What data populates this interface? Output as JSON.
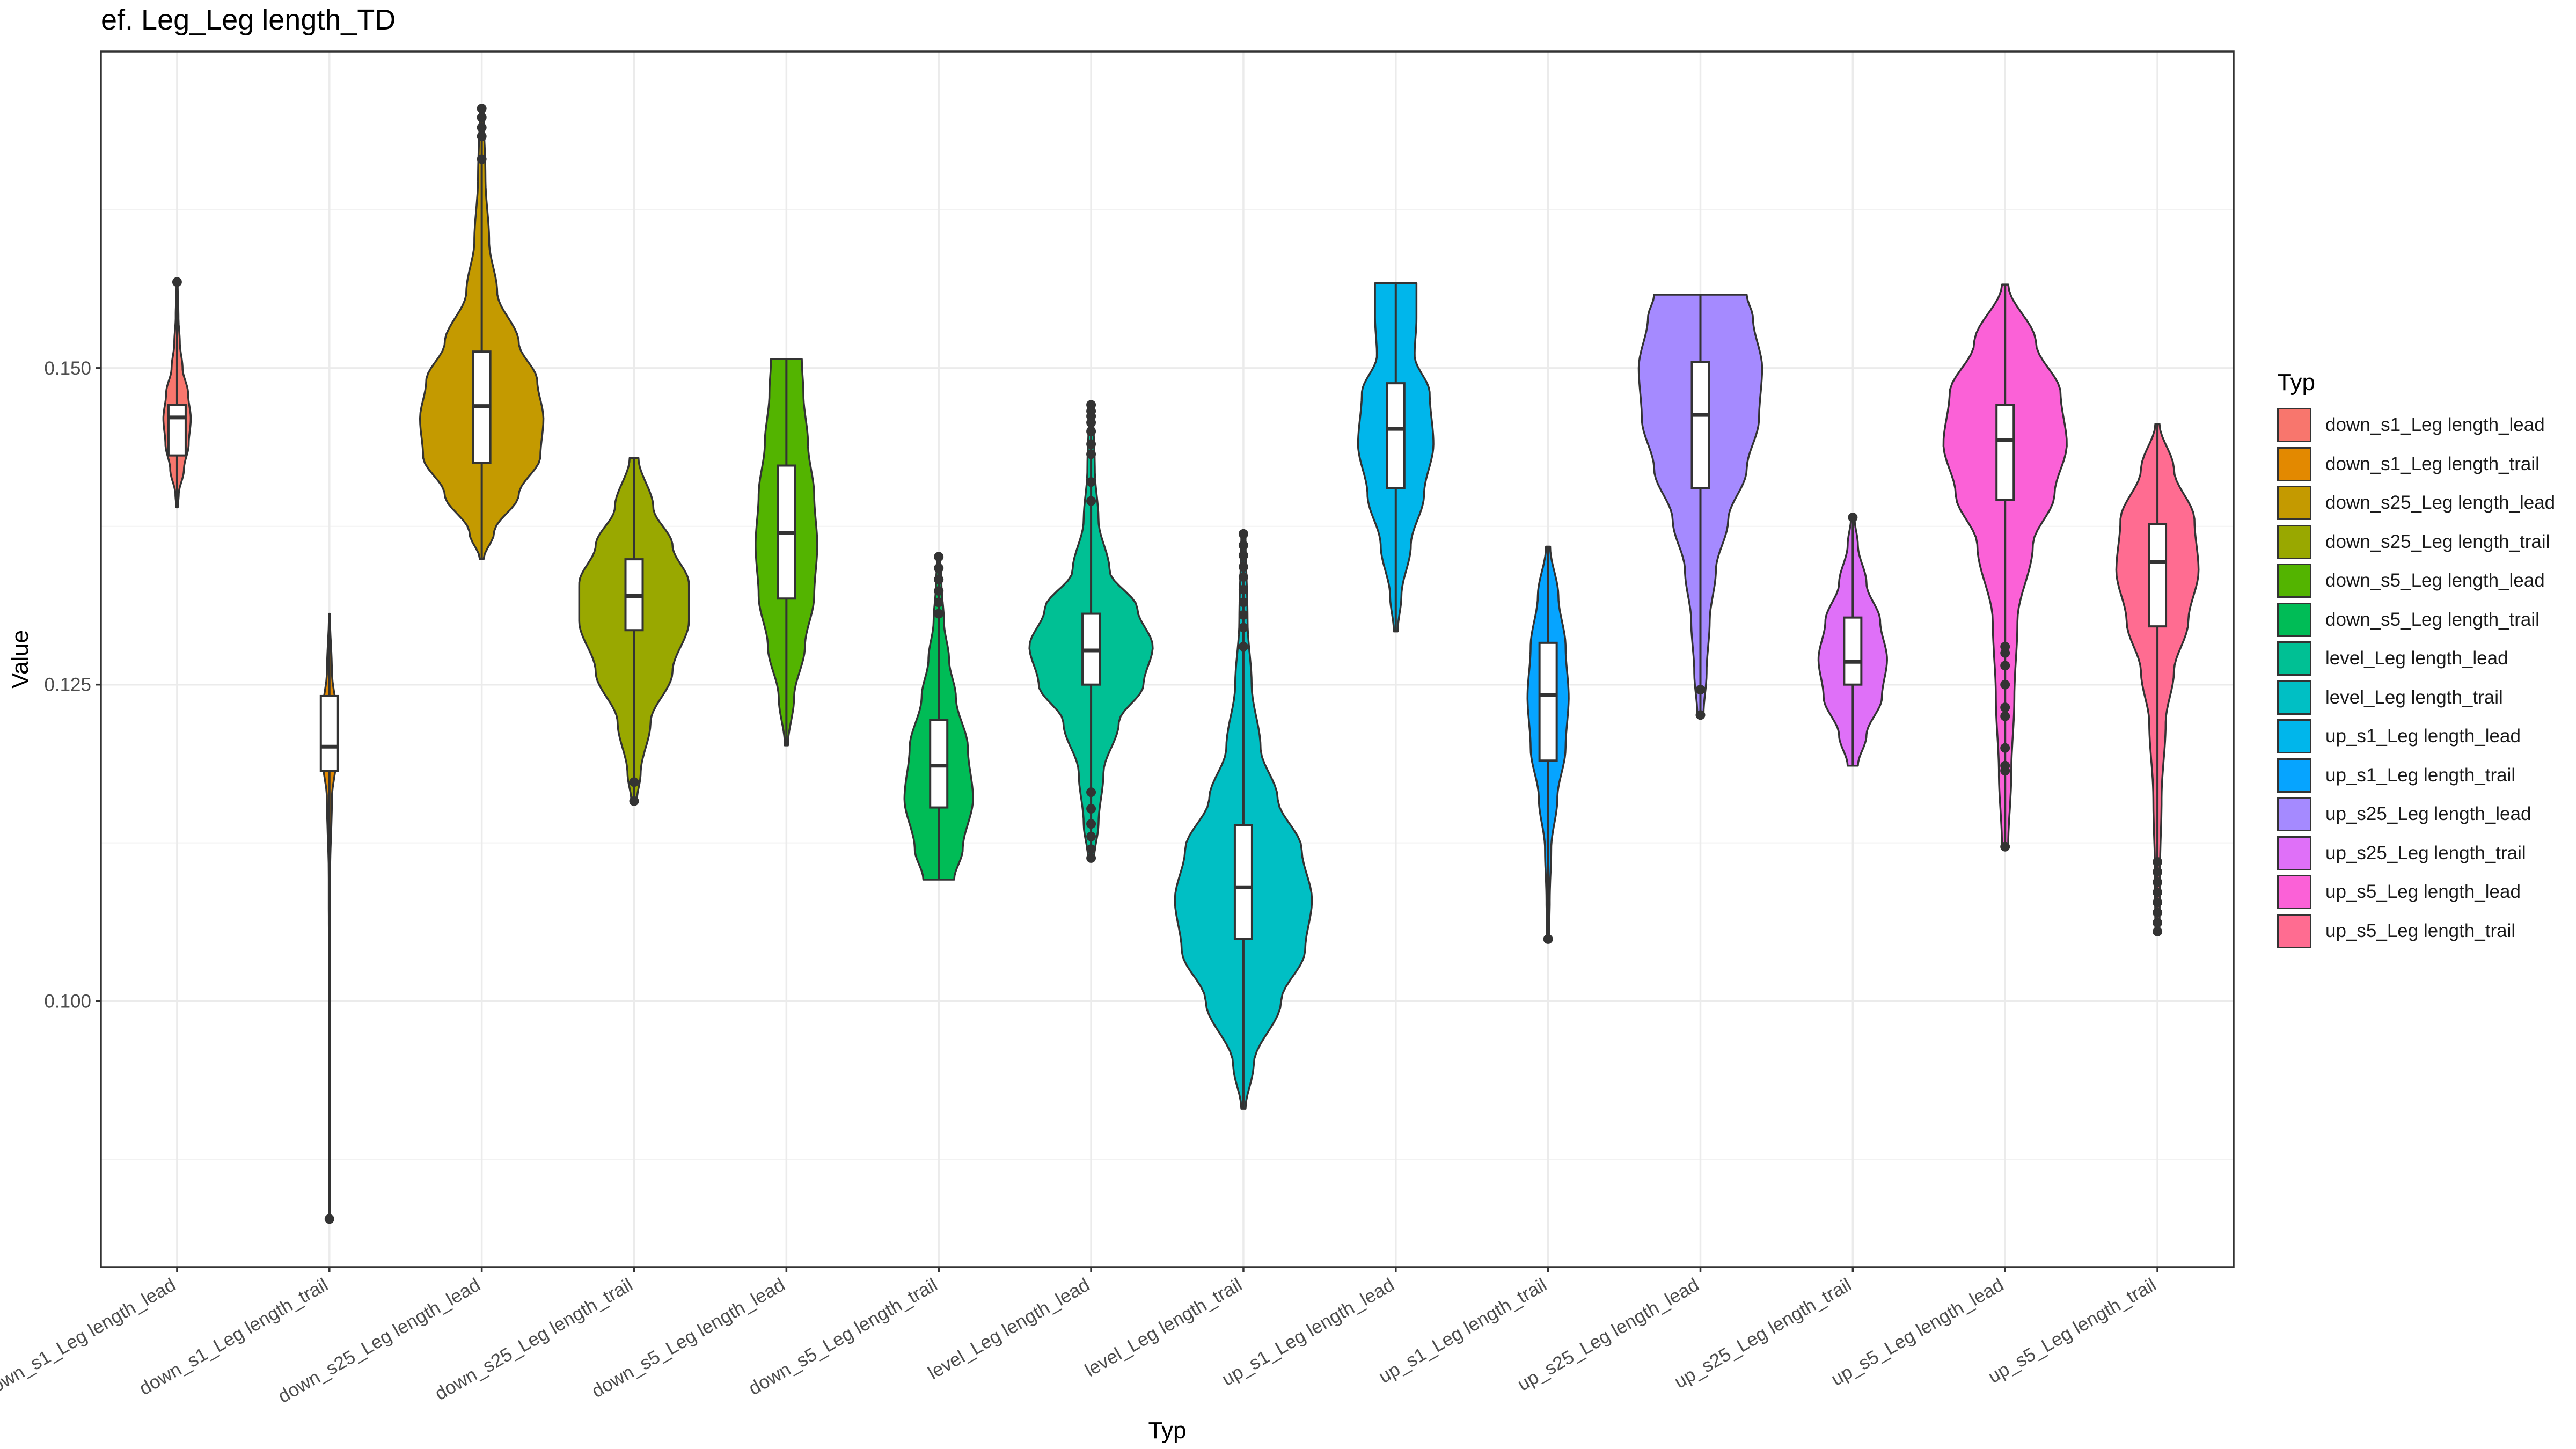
{
  "title": "ef. Leg_Leg length_TD",
  "chart_data": {
    "type": "violin",
    "title": "ef. Leg_Leg length_TD",
    "xlabel": "Typ",
    "ylabel": "Value",
    "ylim": [
      0.079,
      0.175
    ],
    "yticks": [
      0.1,
      0.125,
      0.15
    ],
    "ytick_labels": [
      "0.100",
      "0.125",
      "0.150"
    ],
    "grid": true,
    "legend_title": "Typ",
    "legend_position": "right",
    "categories": [
      "down_s1_Leg length_lead",
      "down_s1_Leg length_trail",
      "down_s25_Leg length_lead",
      "down_s25_Leg length_trail",
      "down_s5_Leg length_lead",
      "down_s5_Leg length_trail",
      "level_Leg length_lead",
      "level_Leg length_trail",
      "up_s1_Leg length_lead",
      "up_s1_Leg length_trail",
      "up_s25_Leg length_lead",
      "up_s25_Leg length_trail",
      "up_s5_Leg length_lead",
      "up_s5_Leg length_trail"
    ],
    "series": [
      {
        "name": "down_s1_Leg length_lead",
        "color": "#F8766D",
        "min": 0.139,
        "max": 0.1568,
        "q1": 0.1431,
        "median": 0.1461,
        "q3": 0.1471,
        "max_width": 0.2,
        "profile": [
          [
            0.139,
            0.05
          ],
          [
            0.14,
            0.12
          ],
          [
            0.142,
            0.5
          ],
          [
            0.144,
            0.85
          ],
          [
            0.146,
            1.0
          ],
          [
            0.148,
            0.8
          ],
          [
            0.15,
            0.4
          ],
          [
            0.152,
            0.2
          ],
          [
            0.154,
            0.1
          ],
          [
            0.1568,
            0.04
          ]
        ],
        "outliers": [
          0.1568
        ]
      },
      {
        "name": "down_s1_Leg length_trail",
        "color": "#E38900",
        "min": 0.0828,
        "max": 0.1306,
        "q1": 0.1182,
        "median": 0.1201,
        "q3": 0.1241,
        "max_width": 0.12,
        "profile": [
          [
            0.0828,
            0.05
          ],
          [
            0.09,
            0.05
          ],
          [
            0.1,
            0.05
          ],
          [
            0.11,
            0.08
          ],
          [
            0.116,
            0.3
          ],
          [
            0.119,
            0.8
          ],
          [
            0.121,
            1.0
          ],
          [
            0.123,
            0.8
          ],
          [
            0.126,
            0.3
          ],
          [
            0.1306,
            0.05
          ]
        ],
        "outliers": [
          0.0828
        ]
      },
      {
        "name": "down_s25_Leg length_lead",
        "color": "#C49A00",
        "min": 0.1349,
        "max": 0.1705,
        "q1": 0.1425,
        "median": 0.147,
        "q3": 0.1513,
        "max_width": 0.9,
        "profile": [
          [
            0.1349,
            0.03
          ],
          [
            0.137,
            0.2
          ],
          [
            0.14,
            0.6
          ],
          [
            0.143,
            0.95
          ],
          [
            0.146,
            1.0
          ],
          [
            0.149,
            0.9
          ],
          [
            0.152,
            0.6
          ],
          [
            0.156,
            0.25
          ],
          [
            0.16,
            0.12
          ],
          [
            0.165,
            0.06
          ],
          [
            0.1705,
            0.03
          ]
        ],
        "outliers": [
          0.1705,
          0.1698,
          0.169,
          0.1683,
          0.1665
        ]
      },
      {
        "name": "down_s25_Leg length_trail",
        "color": "#99A800",
        "min": 0.1158,
        "max": 0.1429,
        "q1": 0.1293,
        "median": 0.132,
        "q3": 0.1349,
        "max_width": 0.8,
        "profile": [
          [
            0.1158,
            0.05
          ],
          [
            0.118,
            0.12
          ],
          [
            0.122,
            0.3
          ],
          [
            0.126,
            0.7
          ],
          [
            0.13,
            1.0
          ],
          [
            0.133,
            1.0
          ],
          [
            0.136,
            0.7
          ],
          [
            0.139,
            0.35
          ],
          [
            0.1429,
            0.08
          ]
        ],
        "outliers": [
          0.1158,
          0.1173
        ]
      },
      {
        "name": "down_s5_Leg length_lead",
        "color": "#53B400",
        "min": 0.1202,
        "max": 0.1507,
        "q1": 0.1318,
        "median": 0.137,
        "q3": 0.1423,
        "max_width": 0.45,
        "profile": [
          [
            0.1202,
            0.05
          ],
          [
            0.124,
            0.25
          ],
          [
            0.128,
            0.6
          ],
          [
            0.132,
            0.9
          ],
          [
            0.136,
            1.0
          ],
          [
            0.14,
            0.9
          ],
          [
            0.144,
            0.7
          ],
          [
            0.148,
            0.55
          ],
          [
            0.1507,
            0.5
          ]
        ],
        "outliers": []
      },
      {
        "name": "down_s5_Leg length_trail",
        "color": "#00BC56",
        "min": 0.1096,
        "max": 0.1351,
        "q1": 0.1153,
        "median": 0.1186,
        "q3": 0.1222,
        "max_width": 0.5,
        "profile": [
          [
            0.1096,
            0.45
          ],
          [
            0.112,
            0.7
          ],
          [
            0.116,
            1.0
          ],
          [
            0.12,
            0.85
          ],
          [
            0.124,
            0.5
          ],
          [
            0.127,
            0.3
          ],
          [
            0.13,
            0.15
          ],
          [
            0.133,
            0.08
          ],
          [
            0.1351,
            0.04
          ]
        ],
        "outliers": [
          0.1351,
          0.1342,
          0.1333,
          0.1324,
          0.1315,
          0.1306
        ]
      },
      {
        "name": "level_Leg length_lead",
        "color": "#00C094",
        "min": 0.1113,
        "max": 0.1471,
        "q1": 0.125,
        "median": 0.1277,
        "q3": 0.1306,
        "max_width": 0.9,
        "profile": [
          [
            0.1113,
            0.05
          ],
          [
            0.114,
            0.12
          ],
          [
            0.118,
            0.2
          ],
          [
            0.122,
            0.45
          ],
          [
            0.125,
            0.85
          ],
          [
            0.128,
            1.0
          ],
          [
            0.131,
            0.75
          ],
          [
            0.134,
            0.3
          ],
          [
            0.138,
            0.12
          ],
          [
            0.142,
            0.06
          ],
          [
            0.1471,
            0.03
          ]
        ],
        "outliers": [
          0.1471,
          0.1466,
          0.1462,
          0.1457,
          0.145,
          0.144,
          0.1432,
          0.141,
          0.1395,
          0.1165,
          0.1152,
          0.114,
          0.113,
          0.112,
          0.1113
        ]
      },
      {
        "name": "level_Leg length_trail",
        "color": "#00BFC4",
        "min": 0.0915,
        "max": 0.1369,
        "q1": 0.1049,
        "median": 0.109,
        "q3": 0.1139,
        "max_width": 1.0,
        "profile": [
          [
            0.0915,
            0.03
          ],
          [
            0.095,
            0.15
          ],
          [
            0.1,
            0.55
          ],
          [
            0.104,
            0.9
          ],
          [
            0.108,
            1.0
          ],
          [
            0.112,
            0.85
          ],
          [
            0.116,
            0.5
          ],
          [
            0.12,
            0.25
          ],
          [
            0.125,
            0.12
          ],
          [
            0.13,
            0.06
          ],
          [
            0.1369,
            0.03
          ]
        ],
        "outliers": [
          0.1369,
          0.136,
          0.1352,
          0.1343,
          0.1335,
          0.1325,
          0.1315,
          0.1305,
          0.1295,
          0.128
        ]
      },
      {
        "name": "up_s1_Leg length_lead",
        "color": "#00B6EB",
        "min": 0.1292,
        "max": 0.1567,
        "q1": 0.1405,
        "median": 0.1452,
        "q3": 0.1488,
        "max_width": 0.55,
        "profile": [
          [
            0.1292,
            0.05
          ],
          [
            0.132,
            0.15
          ],
          [
            0.136,
            0.4
          ],
          [
            0.14,
            0.75
          ],
          [
            0.144,
            1.0
          ],
          [
            0.148,
            0.9
          ],
          [
            0.151,
            0.5
          ],
          [
            0.154,
            0.55
          ],
          [
            0.1567,
            0.55
          ]
        ],
        "outliers": []
      },
      {
        "name": "up_s1_Leg length_trail",
        "color": "#06A4FF",
        "min": 0.1049,
        "max": 0.1359,
        "q1": 0.119,
        "median": 0.1242,
        "q3": 0.1283,
        "max_width": 0.3,
        "profile": [
          [
            0.1049,
            0.05
          ],
          [
            0.108,
            0.08
          ],
          [
            0.112,
            0.15
          ],
          [
            0.116,
            0.45
          ],
          [
            0.12,
            0.85
          ],
          [
            0.124,
            1.0
          ],
          [
            0.128,
            0.85
          ],
          [
            0.132,
            0.5
          ],
          [
            0.1359,
            0.1
          ]
        ],
        "outliers": [
          0.1049
        ]
      },
      {
        "name": "up_s25_Leg length_lead",
        "color": "#A58AFF",
        "min": 0.1226,
        "max": 0.1558,
        "q1": 0.1405,
        "median": 0.1463,
        "q3": 0.1505,
        "max_width": 0.9,
        "profile": [
          [
            0.1226,
            0.05
          ],
          [
            0.126,
            0.1
          ],
          [
            0.13,
            0.15
          ],
          [
            0.134,
            0.25
          ],
          [
            0.138,
            0.45
          ],
          [
            0.142,
            0.75
          ],
          [
            0.146,
            0.95
          ],
          [
            0.15,
            1.0
          ],
          [
            0.154,
            0.85
          ],
          [
            0.1558,
            0.75
          ]
        ],
        "outliers": [
          0.1226,
          0.1246
        ]
      },
      {
        "name": "up_s25_Leg length_trail",
        "color": "#DF70F8",
        "min": 0.1186,
        "max": 0.1382,
        "q1": 0.125,
        "median": 0.1268,
        "q3": 0.1303,
        "max_width": 0.5,
        "profile": [
          [
            0.1186,
            0.15
          ],
          [
            0.121,
            0.4
          ],
          [
            0.124,
            0.85
          ],
          [
            0.127,
            1.0
          ],
          [
            0.13,
            0.8
          ],
          [
            0.133,
            0.4
          ],
          [
            0.136,
            0.15
          ],
          [
            0.1382,
            0.05
          ]
        ],
        "outliers": [
          0.1382
        ]
      },
      {
        "name": "up_s5_Leg length_lead",
        "color": "#FB61D7",
        "min": 0.1122,
        "max": 0.1566,
        "q1": 0.1396,
        "median": 0.1443,
        "q3": 0.1471,
        "max_width": 0.9,
        "profile": [
          [
            0.1122,
            0.05
          ],
          [
            0.118,
            0.1
          ],
          [
            0.124,
            0.15
          ],
          [
            0.13,
            0.2
          ],
          [
            0.136,
            0.45
          ],
          [
            0.14,
            0.8
          ],
          [
            0.144,
            1.0
          ],
          [
            0.148,
            0.9
          ],
          [
            0.152,
            0.5
          ],
          [
            0.1566,
            0.05
          ]
        ],
        "outliers": [
          0.1122,
          0.1182,
          0.1186,
          0.12,
          0.1225,
          0.1232,
          0.125,
          0.1265,
          0.1275,
          0.128
        ]
      },
      {
        "name": "up_s5_Leg length_trail",
        "color": "#FF6C91",
        "min": 0.1055,
        "max": 0.1456,
        "q1": 0.1296,
        "median": 0.1347,
        "q3": 0.1377,
        "max_width": 0.6,
        "profile": [
          [
            0.1055,
            0.05
          ],
          [
            0.11,
            0.06
          ],
          [
            0.116,
            0.1
          ],
          [
            0.122,
            0.2
          ],
          [
            0.126,
            0.4
          ],
          [
            0.13,
            0.75
          ],
          [
            0.134,
            1.0
          ],
          [
            0.138,
            0.9
          ],
          [
            0.142,
            0.4
          ],
          [
            0.1456,
            0.05
          ]
        ],
        "outliers": [
          0.1055,
          0.1062,
          0.107,
          0.1078,
          0.1086,
          0.1094,
          0.1102,
          0.111
        ]
      }
    ]
  }
}
